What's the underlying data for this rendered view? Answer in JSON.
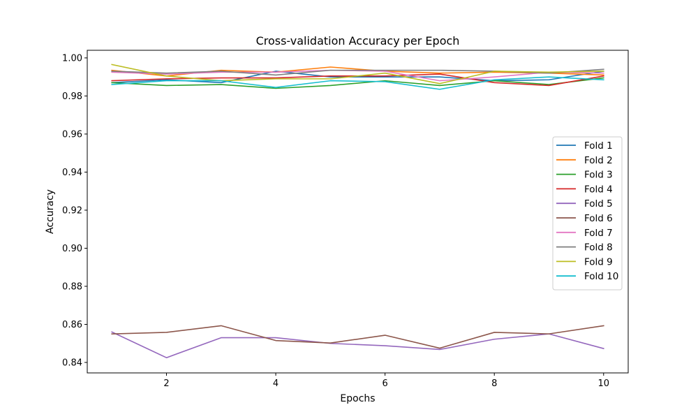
{
  "chart_data": {
    "type": "line",
    "title": "Cross-validation Accuracy per Epoch",
    "xlabel": "Epochs",
    "ylabel": "Accuracy",
    "xlim": [
      0.55,
      10.45
    ],
    "ylim": [
      0.8345,
      1.004
    ],
    "xticks": [
      2,
      4,
      6,
      8,
      10
    ],
    "yticks": [
      0.84,
      0.86,
      0.88,
      0.9,
      0.92,
      0.94,
      0.96,
      0.98,
      1.0
    ],
    "xtick_labels": [
      "2",
      "4",
      "6",
      "8",
      "10"
    ],
    "ytick_labels": [
      "0.84",
      "0.86",
      "0.88",
      "0.90",
      "0.92",
      "0.94",
      "0.96",
      "0.98",
      "1.00"
    ],
    "grid": false,
    "legend_position": "center-right",
    "x": [
      1,
      2,
      3,
      4,
      5,
      6,
      7,
      8,
      9,
      10
    ],
    "series": [
      {
        "name": "Fold 1",
        "color": "#1f77b4",
        "values": [
          0.987,
          0.9885,
          0.987,
          0.993,
          0.99,
          0.99,
          0.99,
          0.988,
          0.9885,
          0.993
        ]
      },
      {
        "name": "Fold 2",
        "color": "#ff7f0e",
        "values": [
          0.9935,
          0.9905,
          0.9935,
          0.9925,
          0.9952,
          0.993,
          0.992,
          0.9925,
          0.992,
          0.991
        ]
      },
      {
        "name": "Fold 3",
        "color": "#2ca02c",
        "values": [
          0.987,
          0.9855,
          0.986,
          0.984,
          0.9855,
          0.988,
          0.9855,
          0.988,
          0.986,
          0.9895
        ]
      },
      {
        "name": "Fold 4",
        "color": "#d62728",
        "values": [
          0.988,
          0.989,
          0.9895,
          0.9895,
          0.9905,
          0.9905,
          0.9915,
          0.987,
          0.9855,
          0.9905
        ]
      },
      {
        "name": "Fold 5",
        "color": "#9467bd",
        "values": [
          0.856,
          0.8425,
          0.853,
          0.853,
          0.85,
          0.8488,
          0.8468,
          0.8522,
          0.855,
          0.8473
        ]
      },
      {
        "name": "Fold 6",
        "color": "#8c564b",
        "values": [
          0.855,
          0.8558,
          0.8593,
          0.8515,
          0.8502,
          0.8543,
          0.8475,
          0.8558,
          0.855,
          0.8593
        ]
      },
      {
        "name": "Fold 7",
        "color": "#e377c2",
        "values": [
          0.9925,
          0.9915,
          0.9925,
          0.9925,
          0.9935,
          0.993,
          0.988,
          0.99,
          0.9925,
          0.992
        ]
      },
      {
        "name": "Fold 8",
        "color": "#7f7f7f",
        "values": [
          0.993,
          0.992,
          0.993,
          0.991,
          0.9935,
          0.9935,
          0.9935,
          0.993,
          0.992,
          0.994
        ]
      },
      {
        "name": "Fold 9",
        "color": "#bcbd22",
        "values": [
          0.9965,
          0.9905,
          0.988,
          0.989,
          0.989,
          0.992,
          0.9865,
          0.993,
          0.9925,
          0.993
        ]
      },
      {
        "name": "Fold 10",
        "color": "#17becf",
        "values": [
          0.986,
          0.988,
          0.988,
          0.9845,
          0.988,
          0.9875,
          0.9835,
          0.9885,
          0.99,
          0.9885
        ]
      }
    ]
  }
}
